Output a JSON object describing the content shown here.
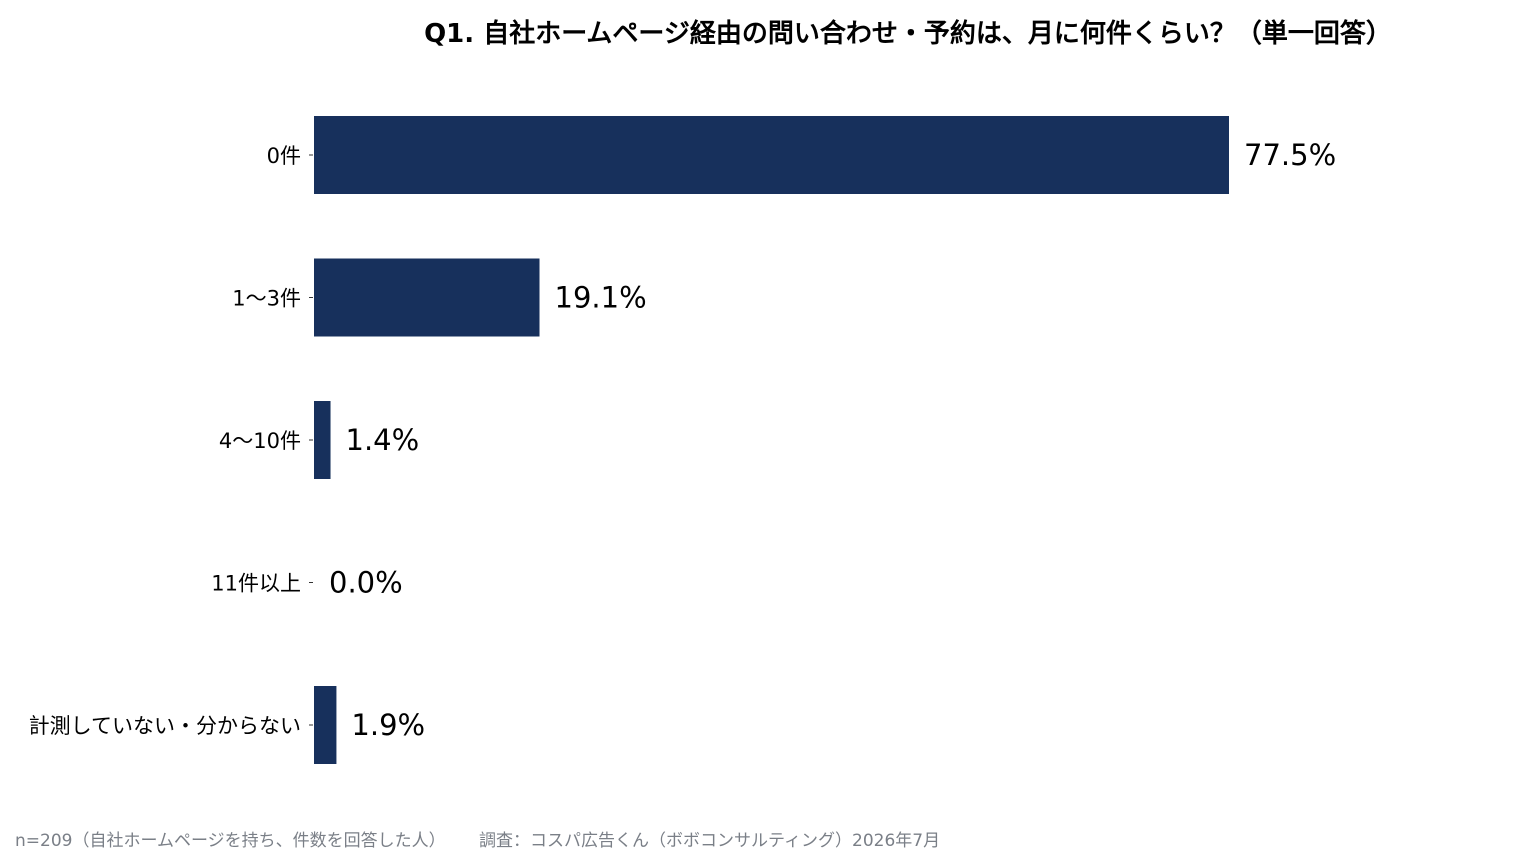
{
  "chart_data": {
    "type": "bar",
    "orientation": "horizontal",
    "title": "Q1. 自社ホームページ経由の問い合わせ・予約は、月に何件くらい？（単一回答）",
    "categories": [
      "0件",
      "1〜3件",
      "4〜10件",
      "11件以上",
      "計測していない・分からない"
    ],
    "values": [
      77.5,
      19.1,
      1.4,
      0.0,
      1.9
    ],
    "value_labels": [
      "77.5%",
      "19.1%",
      "1.4%",
      "0.0%",
      "1.9%"
    ],
    "unit": "%",
    "xlim": [
      0,
      100
    ],
    "grid": false,
    "legend": "none",
    "bar_color": "#17305c"
  },
  "footnote": {
    "sample": "n=209（自社ホームページを持ち、件数を回答した人）",
    "source": "調査：コスパ広告くん（ボボコンサルティング）2026年7月"
  }
}
